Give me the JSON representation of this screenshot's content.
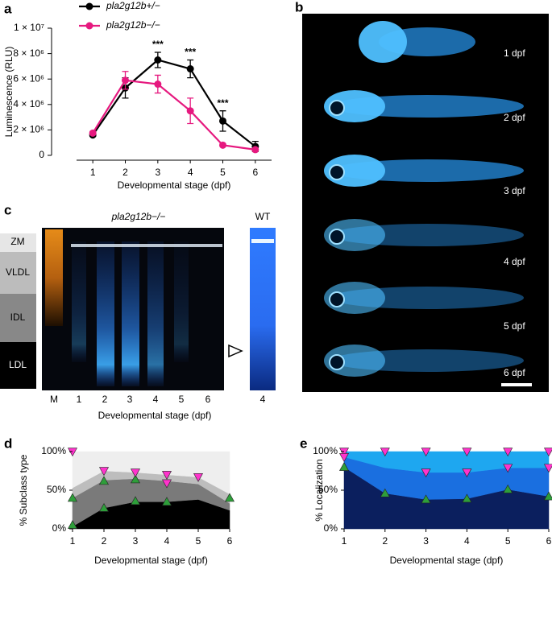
{
  "chart_data": [
    {
      "panel": "a",
      "type": "line",
      "ylabel": "Luminescence (RLU)",
      "xlabel": "Developmental stage (dpf)",
      "x": [
        1,
        2,
        3,
        4,
        5,
        6
      ],
      "xlim": [
        0.5,
        6.5
      ],
      "xticks": [
        1,
        2,
        3,
        4,
        5,
        6
      ],
      "ylim": [
        0,
        10000000
      ],
      "yticks": [
        0,
        {
          "value": 2000000,
          "label": "2 × 10⁶"
        },
        {
          "value": 4000000,
          "label": "4 × 10⁶"
        },
        {
          "value": 6000000,
          "label": "6 × 10⁶"
        },
        {
          "value": 8000000,
          "label": "8 × 10⁶"
        },
        {
          "value": 10000000,
          "label": "1 × 10⁷"
        }
      ],
      "legend": "top",
      "series": [
        {
          "name": "pla2g12b+/−",
          "color": "#000000",
          "values": [
            1600000,
            5300000,
            7500000,
            6800000,
            2700000,
            700000
          ],
          "errors": [
            100000,
            800000,
            600000,
            700000,
            800000,
            400000
          ]
        },
        {
          "name": "pla2g12b−/−",
          "color": "#e6197f",
          "values": [
            1750000,
            5900000,
            5600000,
            3500000,
            800000,
            450000
          ],
          "errors": [
            100000,
            700000,
            700000,
            1000000,
            100000,
            100000
          ]
        }
      ],
      "annotations": [
        {
          "text": "***",
          "x": 3
        },
        {
          "text": "***",
          "x": 4
        },
        {
          "text": "***",
          "x": 5
        }
      ]
    },
    {
      "panel": "d",
      "type": "area",
      "stacked": true,
      "ylabel": "% Subclass type",
      "xlabel": "Developmental stage (dpf)",
      "x": [
        1,
        2,
        3,
        4,
        5,
        6
      ],
      "xlim": [
        1,
        6
      ],
      "xticks": [
        1,
        2,
        3,
        4,
        5,
        6
      ],
      "ylim": [
        0,
        100
      ],
      "yticks": [
        {
          "value": 0,
          "label": "0%"
        },
        {
          "value": 50,
          "label": "50%"
        },
        {
          "value": 100,
          "label": "100%"
        }
      ],
      "series": [
        {
          "color": "#000000",
          "values": [
            3,
            27,
            35,
            35,
            38,
            24
          ]
        },
        {
          "color": "#7a7a7a",
          "values": [
            37,
            36,
            30,
            27,
            20,
            9
          ]
        },
        {
          "color": "#bdbdbd",
          "values": [
            13,
            12,
            8,
            8,
            9,
            12
          ]
        },
        {
          "color": "#eeeeee",
          "values": [
            47,
            25,
            27,
            30,
            33,
            55
          ]
        }
      ],
      "markers": [
        {
          "shape": "up",
          "color": "#2e9e3a",
          "x": [
            1,
            1,
            2,
            2,
            3,
            3,
            4,
            6
          ],
          "values": [
            5,
            40,
            27,
            62,
            36,
            64,
            35,
            40
          ]
        },
        {
          "shape": "down",
          "color": "#ff33cc",
          "x": [
            1,
            2,
            3,
            4,
            4,
            5
          ],
          "values": [
            100,
            75,
            73,
            70,
            59,
            67
          ]
        }
      ]
    },
    {
      "panel": "e",
      "type": "area",
      "stacked": true,
      "ylabel": "% Localization",
      "xlabel": "Developmental stage (dpf)",
      "x": [
        1,
        2,
        3,
        4,
        5,
        6
      ],
      "xlim": [
        1,
        6
      ],
      "xticks": [
        1,
        2,
        3,
        4,
        5,
        6
      ],
      "ylim": [
        0,
        100
      ],
      "yticks": [
        {
          "value": 0,
          "label": "0%"
        },
        {
          "value": 50,
          "label": "50%"
        },
        {
          "value": 100,
          "label": "100%"
        }
      ],
      "series": [
        {
          "color": "#0b1f5e",
          "values": [
            80,
            46,
            38,
            39,
            51,
            42
          ]
        },
        {
          "color": "#1a6fe0",
          "values": [
            13,
            33,
            35,
            34,
            28,
            37
          ]
        },
        {
          "color": "#1ea7f0",
          "values": [
            7,
            21,
            27,
            27,
            21,
            21
          ]
        }
      ],
      "markers": [
        {
          "shape": "up",
          "color": "#2e9e3a",
          "x": [
            1,
            2,
            3,
            4,
            5,
            6
          ],
          "values": [
            80,
            46,
            38,
            39,
            51,
            42
          ]
        },
        {
          "shape": "down",
          "color": "#ff33cc",
          "x": [
            1,
            1,
            2,
            3,
            3,
            4,
            4,
            5,
            5,
            6,
            6
          ],
          "values": [
            100,
            93,
            100,
            100,
            73,
            100,
            73,
            100,
            79,
            100,
            79
          ]
        }
      ]
    }
  ],
  "images": [
    {
      "panel": "b",
      "labels": [
        "1 dpf",
        "2 dpf",
        "3 dpf",
        "4 dpf",
        "5 dpf",
        "6 dpf"
      ]
    },
    {
      "panel": "c",
      "title": "pla2g12b−/−",
      "reference": "WT",
      "bands": [
        "ZM",
        "VLDL",
        "IDL",
        "LDL"
      ],
      "lanes": [
        "M",
        "1",
        "2",
        "3",
        "4",
        "5",
        "6"
      ],
      "reference_lane": "4",
      "xlabel": "Developmental stage (dpf)"
    }
  ]
}
